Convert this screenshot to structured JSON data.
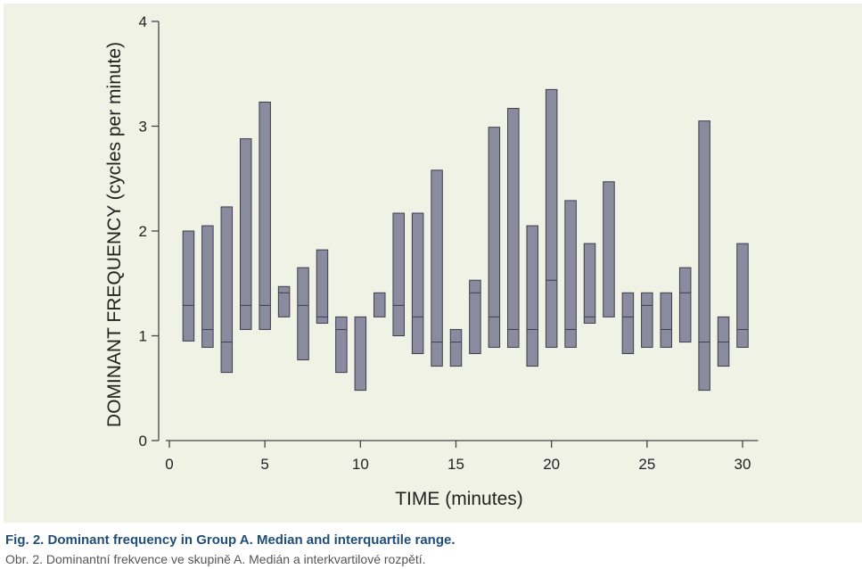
{
  "chart_data": {
    "type": "box",
    "xlabel": "TIME  (minutes)",
    "ylabel": "DOMINANT FREQUENCY  (cycles per minute)",
    "xlim": [
      0,
      31
    ],
    "ylim": [
      0,
      4
    ],
    "xticks": [
      0,
      5,
      10,
      15,
      20,
      25,
      30
    ],
    "yticks": [
      0,
      1,
      2,
      3,
      4
    ],
    "grid": false,
    "box_color": "#8a8b9f",
    "edge_color": "#3c3c4c",
    "points": [
      {
        "x": 1,
        "q1": 0.95,
        "median": 1.29,
        "q3": 2.0
      },
      {
        "x": 2,
        "q1": 0.89,
        "median": 1.06,
        "q3": 2.05
      },
      {
        "x": 3,
        "q1": 0.65,
        "median": 0.94,
        "q3": 2.23
      },
      {
        "x": 4,
        "q1": 1.06,
        "median": 1.29,
        "q3": 2.88
      },
      {
        "x": 5,
        "q1": 1.06,
        "median": 1.29,
        "q3": 3.23
      },
      {
        "x": 6,
        "q1": 1.18,
        "median": 1.41,
        "q3": 1.47
      },
      {
        "x": 7,
        "q1": 0.77,
        "median": 1.29,
        "q3": 1.65
      },
      {
        "x": 8,
        "q1": 1.12,
        "median": 1.18,
        "q3": 1.82
      },
      {
        "x": 9,
        "q1": 0.65,
        "median": 1.06,
        "q3": 1.18
      },
      {
        "x": 10,
        "q1": 0.48,
        "median": null,
        "q3": 1.18
      },
      {
        "x": 11,
        "q1": 1.18,
        "median": null,
        "q3": 1.41
      },
      {
        "x": 12,
        "q1": 1.0,
        "median": 1.29,
        "q3": 2.17
      },
      {
        "x": 13,
        "q1": 0.83,
        "median": 1.18,
        "q3": 2.17
      },
      {
        "x": 14,
        "q1": 0.71,
        "median": 0.94,
        "q3": 2.58
      },
      {
        "x": 15,
        "q1": 0.71,
        "median": 0.94,
        "q3": 1.06
      },
      {
        "x": 16,
        "q1": 0.83,
        "median": 1.41,
        "q3": 1.53
      },
      {
        "x": 17,
        "q1": 0.89,
        "median": 1.18,
        "q3": 2.99
      },
      {
        "x": 18,
        "q1": 0.89,
        "median": 1.06,
        "q3": 3.17
      },
      {
        "x": 19,
        "q1": 0.71,
        "median": 1.06,
        "q3": 2.05
      },
      {
        "x": 20,
        "q1": 0.89,
        "median": 1.53,
        "q3": 3.35
      },
      {
        "x": 21,
        "q1": 0.89,
        "median": 1.06,
        "q3": 2.29
      },
      {
        "x": 22,
        "q1": 1.12,
        "median": 1.18,
        "q3": 1.88
      },
      {
        "x": 23,
        "q1": 1.18,
        "median": null,
        "q3": 2.47
      },
      {
        "x": 24,
        "q1": 0.83,
        "median": 1.18,
        "q3": 1.41
      },
      {
        "x": 25,
        "q1": 0.89,
        "median": 1.29,
        "q3": 1.41
      },
      {
        "x": 26,
        "q1": 0.89,
        "median": 1.06,
        "q3": 1.41
      },
      {
        "x": 27,
        "q1": 0.94,
        "median": 1.41,
        "q3": 1.65
      },
      {
        "x": 28,
        "q1": 0.48,
        "median": 0.94,
        "q3": 3.05
      },
      {
        "x": 29,
        "q1": 0.71,
        "median": 0.94,
        "q3": 1.18
      },
      {
        "x": 30,
        "q1": 0.89,
        "median": 1.06,
        "q3": 1.88
      }
    ]
  },
  "caption": {
    "english": "Fig. 2. Dominant frequency in Group A. Median and interquartile range.",
    "czech": "Obr. 2. Dominantní frekvence ve skupině A. Medián a interkvartilové rozpětí."
  },
  "colors": {
    "background": "#f1f2e6",
    "caption_title": "#1f4e79",
    "caption_sub": "#555555"
  }
}
